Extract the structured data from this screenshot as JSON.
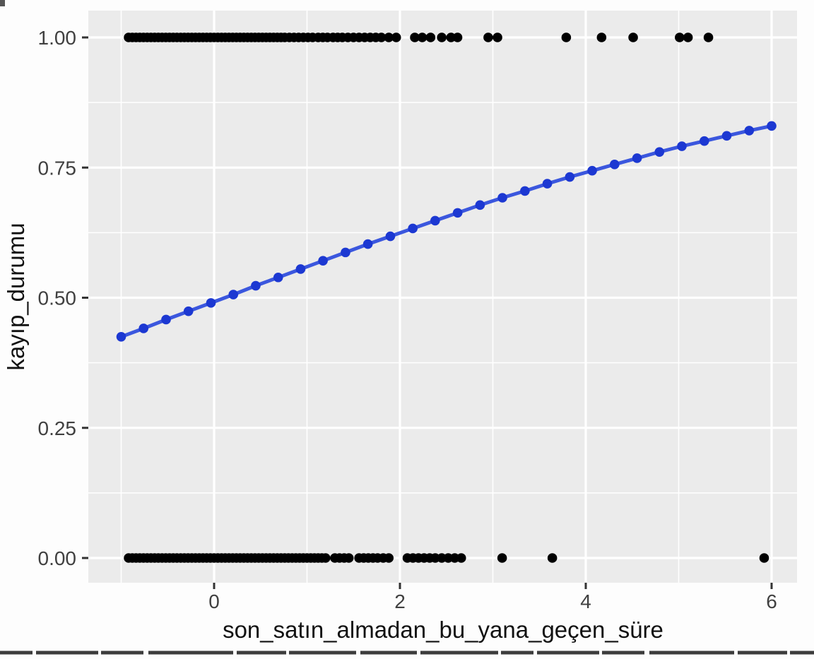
{
  "chart_data": {
    "type": "scatter",
    "title": "",
    "xlabel": "son_satın_almadan_bu_yana_geçen_süre",
    "ylabel": "kayıp_durumu",
    "xlim": [
      -1.35,
      6.27
    ],
    "ylim": [
      -0.047,
      1.051
    ],
    "grid": "major+minor white on gray panel (ggplot style)",
    "legend_position": "none",
    "x_axis": {
      "major_ticks": [
        0,
        2,
        4,
        6
      ],
      "major_tick_labels": [
        "0",
        "2",
        "4",
        "6"
      ],
      "minor_ticks": [
        -1,
        1,
        3,
        5
      ]
    },
    "y_axis": {
      "major_ticks": [
        0,
        0.25,
        0.5,
        0.75,
        1
      ],
      "major_tick_labels": [
        "0.00",
        "0.25",
        "0.50",
        "0.75",
        "1.00"
      ],
      "minor_ticks": [
        0.125,
        0.375,
        0.625,
        0.875
      ]
    },
    "series": [
      {
        "name": "observations_y1",
        "type": "scatter",
        "color": "#000000",
        "y_value": 1.0,
        "x": [
          -0.92,
          -0.88,
          -0.84,
          -0.8,
          -0.76,
          -0.72,
          -0.68,
          -0.64,
          -0.6,
          -0.56,
          -0.52,
          -0.48,
          -0.44,
          -0.4,
          -0.36,
          -0.32,
          -0.28,
          -0.24,
          -0.2,
          -0.16,
          -0.12,
          -0.08,
          -0.04,
          0,
          0.04,
          0.08,
          0.12,
          0.16,
          0.2,
          0.24,
          0.28,
          0.32,
          0.36,
          0.4,
          0.44,
          0.48,
          0.52,
          0.56,
          0.6,
          0.64,
          0.68,
          0.72,
          0.76,
          0.81,
          0.86,
          0.91,
          0.96,
          1.01,
          1.06,
          1.12,
          1.17,
          1.22,
          1.28,
          1.33,
          1.38,
          1.44,
          1.5,
          1.56,
          1.62,
          1.68,
          1.74,
          1.8,
          1.88,
          1.96,
          2.16,
          2.24,
          2.33,
          2.45,
          2.55,
          2.62,
          2.95,
          3.05,
          3.79,
          4.17,
          4.51,
          5.01,
          5.1,
          5.32
        ]
      },
      {
        "name": "observations_y0",
        "type": "scatter",
        "color": "#000000",
        "y_value": 0.0,
        "x": [
          -0.92,
          -0.88,
          -0.84,
          -0.8,
          -0.76,
          -0.72,
          -0.68,
          -0.64,
          -0.6,
          -0.56,
          -0.52,
          -0.48,
          -0.44,
          -0.4,
          -0.36,
          -0.32,
          -0.28,
          -0.24,
          -0.2,
          -0.16,
          -0.12,
          -0.08,
          -0.04,
          0,
          0.04,
          0.08,
          0.12,
          0.16,
          0.2,
          0.24,
          0.28,
          0.32,
          0.36,
          0.4,
          0.44,
          0.48,
          0.52,
          0.56,
          0.6,
          0.64,
          0.68,
          0.72,
          0.76,
          0.8,
          0.84,
          0.88,
          0.92,
          0.96,
          1,
          1.04,
          1.08,
          1.12,
          1.16,
          1.2,
          1.3,
          1.35,
          1.4,
          1.45,
          1.56,
          1.61,
          1.66,
          1.71,
          1.76,
          1.82,
          1.88,
          2.08,
          2.14,
          2.2,
          2.26,
          2.32,
          2.38,
          2.45,
          2.52,
          2.59,
          2.66,
          3.1,
          3.64,
          5.92
        ]
      },
      {
        "name": "logistic_fit",
        "type": "line+points",
        "line_color": "#3b57de",
        "point_color": "#1c38d2",
        "points": [
          [
            -1.0,
            0.425
          ],
          [
            -0.759,
            0.441
          ],
          [
            -0.517,
            0.458
          ],
          [
            -0.276,
            0.474
          ],
          [
            -0.034,
            0.49
          ],
          [
            0.207,
            0.506
          ],
          [
            0.448,
            0.523
          ],
          [
            0.69,
            0.539
          ],
          [
            0.931,
            0.555
          ],
          [
            1.172,
            0.571
          ],
          [
            1.414,
            0.587
          ],
          [
            1.655,
            0.603
          ],
          [
            1.897,
            0.618
          ],
          [
            2.138,
            0.633
          ],
          [
            2.379,
            0.648
          ],
          [
            2.621,
            0.663
          ],
          [
            2.862,
            0.678
          ],
          [
            3.103,
            0.692
          ],
          [
            3.345,
            0.705
          ],
          [
            3.586,
            0.719
          ],
          [
            3.828,
            0.732
          ],
          [
            4.069,
            0.744
          ],
          [
            4.31,
            0.756
          ],
          [
            4.552,
            0.768
          ],
          [
            4.793,
            0.78
          ],
          [
            5.034,
            0.791
          ],
          [
            5.276,
            0.801
          ],
          [
            5.517,
            0.811
          ],
          [
            5.759,
            0.821
          ],
          [
            6.0,
            0.83
          ]
        ]
      }
    ],
    "colors": {
      "panel_background": "#ebebeb",
      "gridline": "#ffffff",
      "tick_label": "#404040",
      "axis_title": "#111111",
      "tick_mark": "#333333",
      "figure_background": "#fdfdfd"
    }
  }
}
